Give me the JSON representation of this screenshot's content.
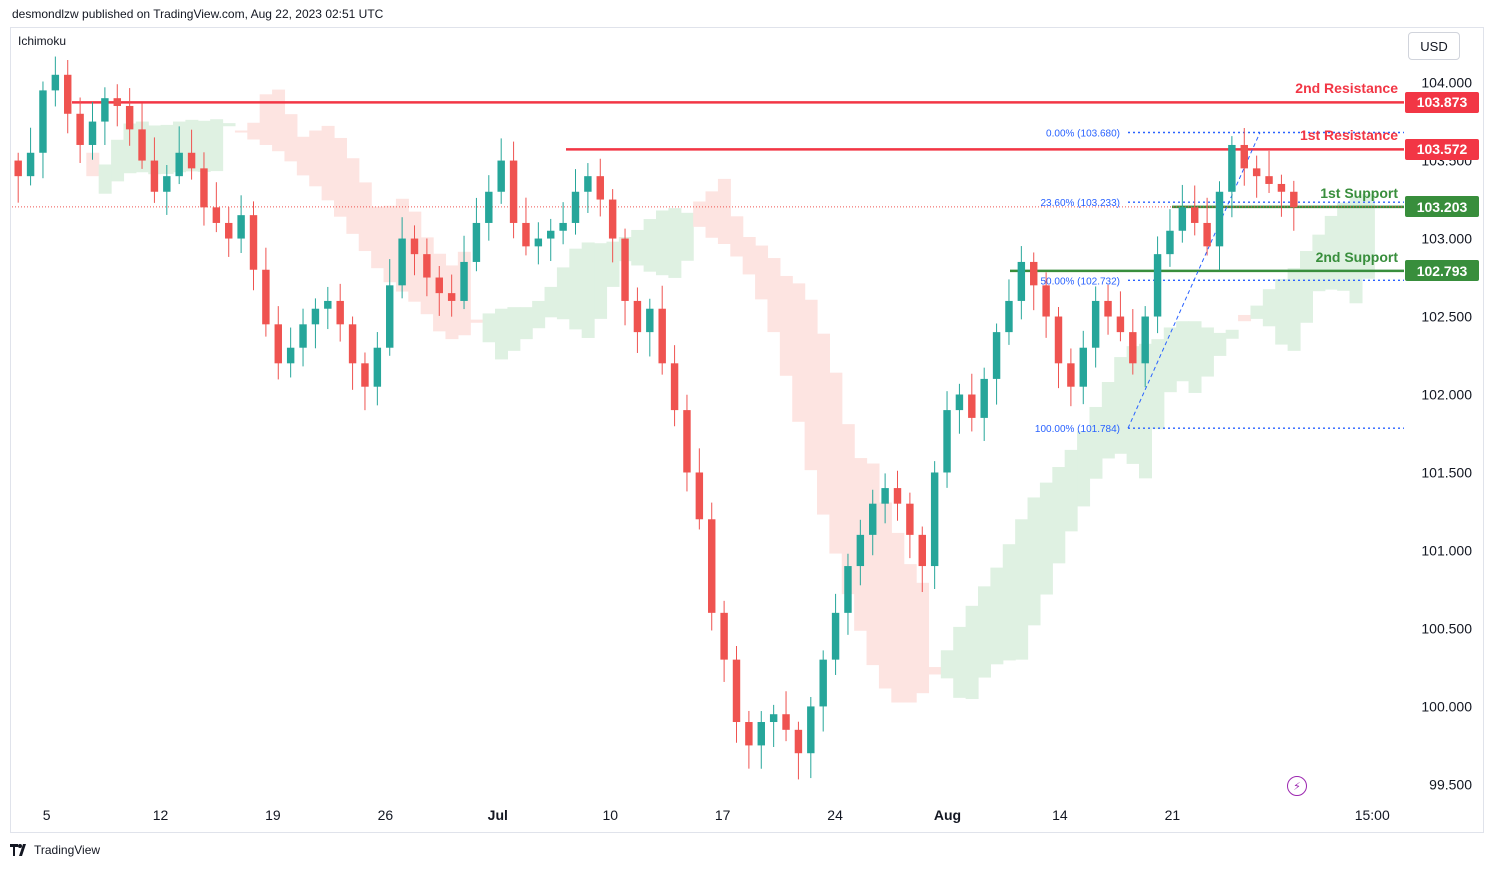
{
  "header": {
    "text": "desmondlzw published on TradingView.com, Aug 22, 2023 02:51 UTC"
  },
  "indicator": "Ichimoku",
  "currency": "USD",
  "footer": {
    "brand": "TradingView",
    "logo_icon": "tradingview-logo-icon"
  },
  "colors": {
    "bull": "#26a69a",
    "bear": "#ef5350",
    "resistance": "#f23645",
    "support": "#388e3c",
    "cloud_bull": "#dff1e2",
    "cloud_bear": "#fde4e1",
    "fib": "#2962ff"
  },
  "chart_data": {
    "type": "candlestick",
    "y_axis": {
      "ticks": [
        "104.000",
        "103.500",
        "103.000",
        "102.500",
        "102.000",
        "101.500",
        "101.000",
        "100.500",
        "100.000",
        "99.500"
      ],
      "range": [
        99.4,
        104.35
      ]
    },
    "x_axis": {
      "ticks": [
        "5",
        "12",
        "19",
        "26",
        "Jul",
        "10",
        "17",
        "24",
        "Aug",
        "14",
        "21",
        "15:00"
      ]
    },
    "levels": [
      {
        "name": "2nd Resistance",
        "price": "103.873",
        "value": 103.873,
        "kind": "resistance"
      },
      {
        "name": "1st Resistance",
        "price": "103.572",
        "value": 103.572,
        "kind": "resistance"
      },
      {
        "name": "1st Support",
        "price": "103.203",
        "value": 103.203,
        "kind": "support"
      },
      {
        "name": "2nd Support",
        "price": "102.793",
        "value": 102.793,
        "kind": "support"
      }
    ],
    "fib_levels": [
      {
        "label": "0.00% (103.680)",
        "value": 103.68
      },
      {
        "label": "23.60% (103.233)",
        "value": 103.233
      },
      {
        "label": "50.00% (102.732)",
        "value": 102.732
      },
      {
        "label": "100.00% (101.784)",
        "value": 101.784
      }
    ],
    "series_close": [
      103.4,
      103.55,
      103.95,
      104.05,
      103.8,
      103.6,
      103.75,
      103.9,
      103.85,
      103.7,
      103.5,
      103.3,
      103.4,
      103.55,
      103.45,
      103.2,
      103.1,
      103.0,
      103.15,
      102.8,
      102.45,
      102.2,
      102.3,
      102.45,
      102.55,
      102.6,
      102.45,
      102.2,
      102.05,
      102.3,
      102.7,
      103.0,
      102.9,
      102.75,
      102.65,
      102.6,
      102.85,
      103.1,
      103.3,
      103.5,
      103.1,
      102.95,
      103.0,
      103.05,
      103.1,
      103.3,
      103.4,
      103.25,
      103.0,
      102.6,
      102.4,
      102.55,
      102.2,
      101.9,
      101.5,
      101.2,
      100.6,
      100.3,
      99.9,
      99.75,
      99.9,
      99.95,
      99.85,
      99.7,
      100.0,
      100.3,
      100.6,
      100.9,
      101.1,
      101.3,
      101.4,
      101.3,
      101.1,
      100.9,
      101.5,
      101.9,
      102.0,
      101.85,
      102.1,
      102.4,
      102.6,
      102.85,
      102.7,
      102.5,
      102.2,
      102.05,
      102.3,
      102.6,
      102.5,
      102.4,
      102.2,
      102.5,
      102.9,
      103.05,
      103.2,
      103.1,
      102.95,
      103.3,
      103.6,
      103.45,
      103.4,
      103.35,
      103.3,
      103.2
    ]
  }
}
